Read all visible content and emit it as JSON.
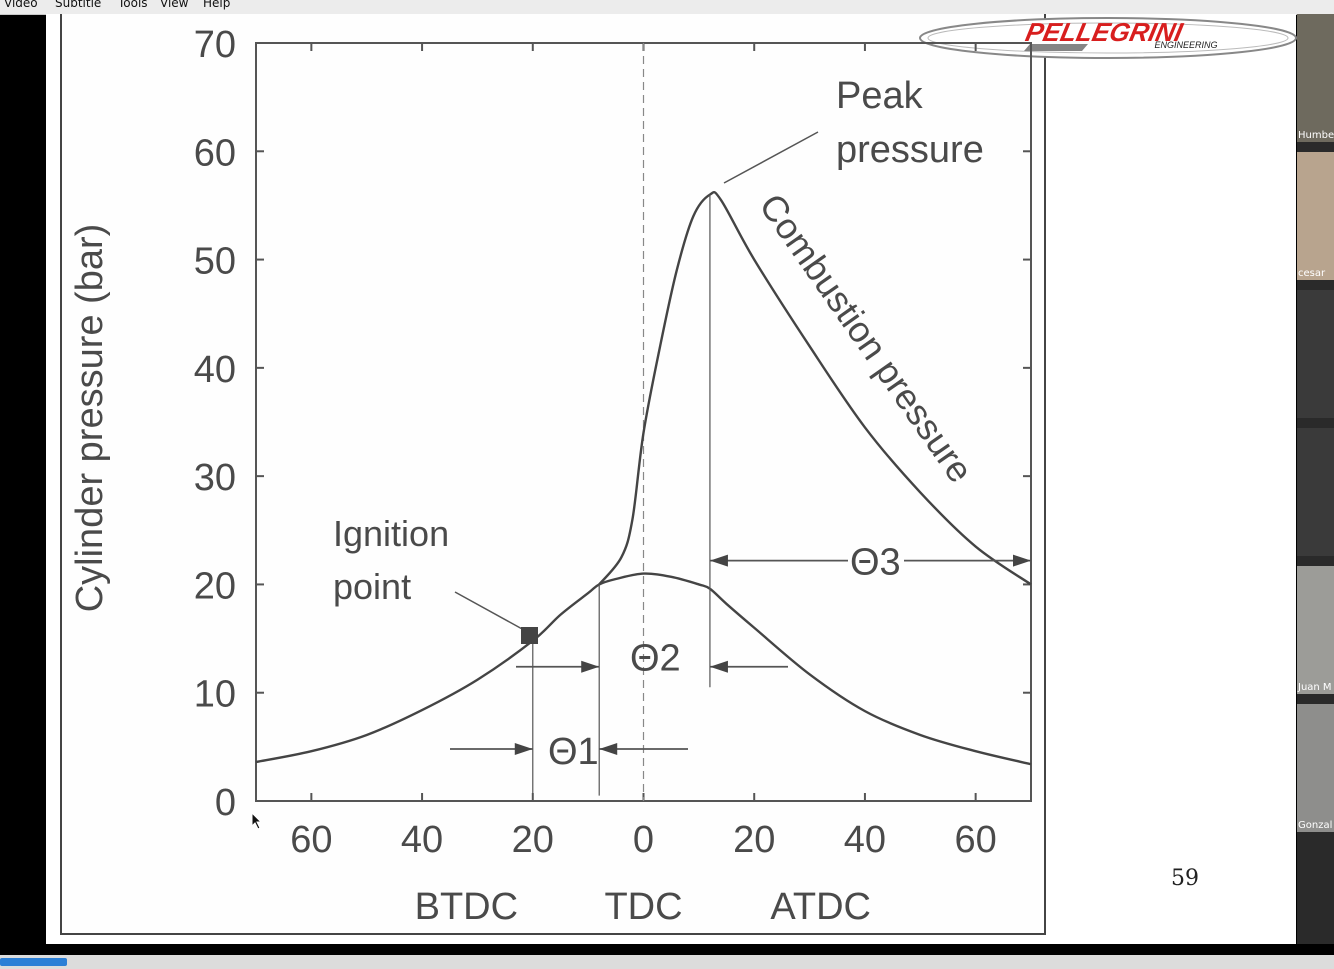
{
  "menu": {
    "items": [
      "Video",
      "Subtitle",
      "Tools",
      "View",
      "Help"
    ]
  },
  "slide": {
    "number": "59",
    "logo": {
      "brand": "PELLEGRINI",
      "sub": "ENGINEERING",
      "color": "#d81e1e"
    }
  },
  "participants": [
    "Humbe",
    "cesar",
    "Juan M",
    "Gonzal"
  ],
  "playback": {
    "progress": 0.05
  },
  "chart_data": {
    "type": "line",
    "ylabel": "Cylinder pressure (bar)",
    "ylim": [
      0,
      70
    ],
    "xlim": [
      -70,
      70
    ],
    "yticks": [
      "0",
      "10",
      "20",
      "30",
      "40",
      "50",
      "60",
      "70"
    ],
    "xticks": [
      "60",
      "40",
      "20",
      "0",
      "20",
      "40",
      "60"
    ],
    "x_sections": [
      "BTDC",
      "TDC",
      "ATDC"
    ],
    "series": [
      {
        "values": [
          [
            -70,
            3.6
          ],
          [
            -60,
            4.6
          ],
          [
            -50,
            6.1
          ],
          [
            -40,
            8.4
          ],
          [
            -30,
            11.2
          ],
          [
            -20,
            14.8
          ],
          [
            -15,
            17.2
          ],
          [
            -10,
            19.2
          ],
          [
            -8,
            20
          ],
          [
            -5,
            20.5
          ],
          [
            0,
            21
          ],
          [
            5,
            20.7
          ],
          [
            10,
            20
          ],
          [
            12,
            19.6
          ],
          [
            15,
            18.2
          ],
          [
            20,
            16
          ],
          [
            30,
            11.7
          ],
          [
            40,
            8.3
          ],
          [
            50,
            6.1
          ],
          [
            60,
            4.6
          ],
          [
            70,
            3.4
          ]
        ]
      },
      {
        "name": "Combustion pressure",
        "values": [
          [
            -8,
            20
          ],
          [
            -4,
            22.5
          ],
          [
            -2,
            26
          ],
          [
            0,
            34
          ],
          [
            3,
            42
          ],
          [
            6,
            49
          ],
          [
            9,
            54
          ],
          [
            12,
            56
          ],
          [
            14,
            55.5
          ],
          [
            20,
            50
          ],
          [
            30,
            42
          ],
          [
            40,
            34.5
          ],
          [
            50,
            28.5
          ],
          [
            60,
            23.5
          ],
          [
            70,
            20
          ]
        ]
      }
    ],
    "annotations": {
      "peak": [
        "Peak",
        "pressure"
      ],
      "ignition": [
        "Ignition",
        "point"
      ],
      "theta1": "Θ1",
      "theta2": "Θ2",
      "theta3": "Θ3"
    }
  }
}
